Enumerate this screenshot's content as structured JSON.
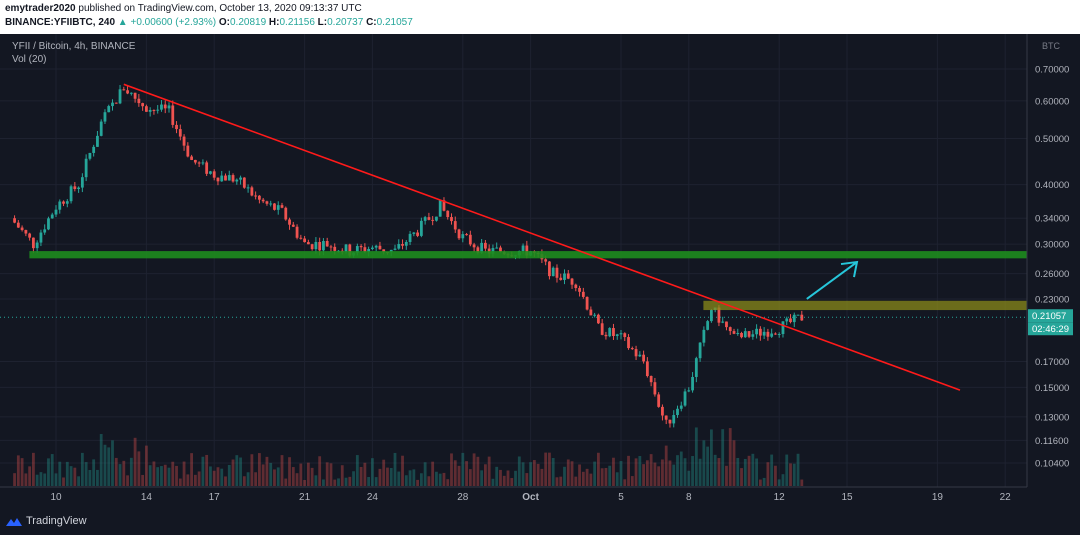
{
  "header": {
    "publisher": "emytrader2020",
    "published_text": "published on TradingView.com, October 13, 2020 09:13:37 UTC",
    "symbol": "BINANCE:YFIIBTC, 240",
    "change": "▲ +0.00600 (+2.93%)",
    "o_label": "O:",
    "o_value": "0.20819",
    "h_label": "H:",
    "h_value": "0.21156",
    "l_label": "L:",
    "l_value": "0.20737",
    "c_label": "C:",
    "c_value": "0.21057"
  },
  "legend": {
    "title": "YFII / Bitcoin, 4h, BINANCE",
    "volume": "Vol (20)"
  },
  "footer": {
    "brand": "TradingView"
  },
  "colors": {
    "background": "#131722",
    "up": "#26a69a",
    "down": "#ef5350",
    "trendline": "#ff1a1a",
    "support_zone": "#1e8c1e",
    "resistance_zone": "#8a8a1a",
    "arrow": "#26c6da"
  },
  "chart_data": {
    "type": "candlestick",
    "y_scale": "log",
    "currency_label": "BTC",
    "y_ticks": [
      "0.70000",
      "0.60000",
      "0.50000",
      "0.40000",
      "0.34000",
      "0.30000",
      "0.26000",
      "0.23000",
      "0.17000",
      "0.15000",
      "0.13000",
      "0.11600",
      "0.10400"
    ],
    "x_ticks": [
      "10",
      "14",
      "17",
      "21",
      "24",
      "28",
      "Oct",
      "5",
      "8",
      "12",
      "15",
      "19",
      "22"
    ],
    "last_price": "0.21057",
    "countdown": "02:46:29",
    "series_approx_close": [
      {
        "date": "Sep 8",
        "close": 0.34
      },
      {
        "date": "Sep 9",
        "close": 0.3
      },
      {
        "date": "Sep 10",
        "close": 0.36
      },
      {
        "date": "Sep 11",
        "close": 0.4
      },
      {
        "date": "Sep 12",
        "close": 0.54
      },
      {
        "date": "Sep 13",
        "close": 0.64
      },
      {
        "date": "Sep 14",
        "close": 0.58
      },
      {
        "date": "Sep 15",
        "close": 0.57
      },
      {
        "date": "Sep 16",
        "close": 0.45
      },
      {
        "date": "Sep 17",
        "close": 0.42
      },
      {
        "date": "Sep 18",
        "close": 0.41
      },
      {
        "date": "Sep 19",
        "close": 0.37
      },
      {
        "date": "Sep 20",
        "close": 0.35
      },
      {
        "date": "Sep 21",
        "close": 0.3
      },
      {
        "date": "Sep 22",
        "close": 0.3
      },
      {
        "date": "Sep 23",
        "close": 0.29
      },
      {
        "date": "Sep 24",
        "close": 0.295
      },
      {
        "date": "Sep 25",
        "close": 0.29
      },
      {
        "date": "Sep 26",
        "close": 0.32
      },
      {
        "date": "Sep 27",
        "close": 0.36
      },
      {
        "date": "Sep 28",
        "close": 0.31
      },
      {
        "date": "Sep 29",
        "close": 0.29
      },
      {
        "date": "Sep 30",
        "close": 0.29
      },
      {
        "date": "Oct 1",
        "close": 0.29
      },
      {
        "date": "Oct 2",
        "close": 0.26
      },
      {
        "date": "Oct 3",
        "close": 0.25
      },
      {
        "date": "Oct 4",
        "close": 0.2
      },
      {
        "date": "Oct 5",
        "close": 0.19
      },
      {
        "date": "Oct 6",
        "close": 0.17
      },
      {
        "date": "Oct 7",
        "close": 0.125
      },
      {
        "date": "Oct 8",
        "close": 0.15
      },
      {
        "date": "Oct 9",
        "close": 0.22
      },
      {
        "date": "Oct 10",
        "close": 0.19
      },
      {
        "date": "Oct 11",
        "close": 0.195
      },
      {
        "date": "Oct 12",
        "close": 0.2
      },
      {
        "date": "Oct 13",
        "close": 0.21057
      }
    ],
    "annotations": {
      "trendline": [
        {
          "date": "Sep 13",
          "price": 0.65
        },
        {
          "date": "Oct 20",
          "price": 0.148
        }
      ],
      "support_zone": [
        0.28,
        0.29
      ],
      "resistance_zone": [
        0.218,
        0.228
      ],
      "arrow": [
        {
          "date": "Oct 13",
          "price": 0.23
        },
        {
          "date": "Oct 15",
          "price": 0.275
        }
      ]
    }
  }
}
